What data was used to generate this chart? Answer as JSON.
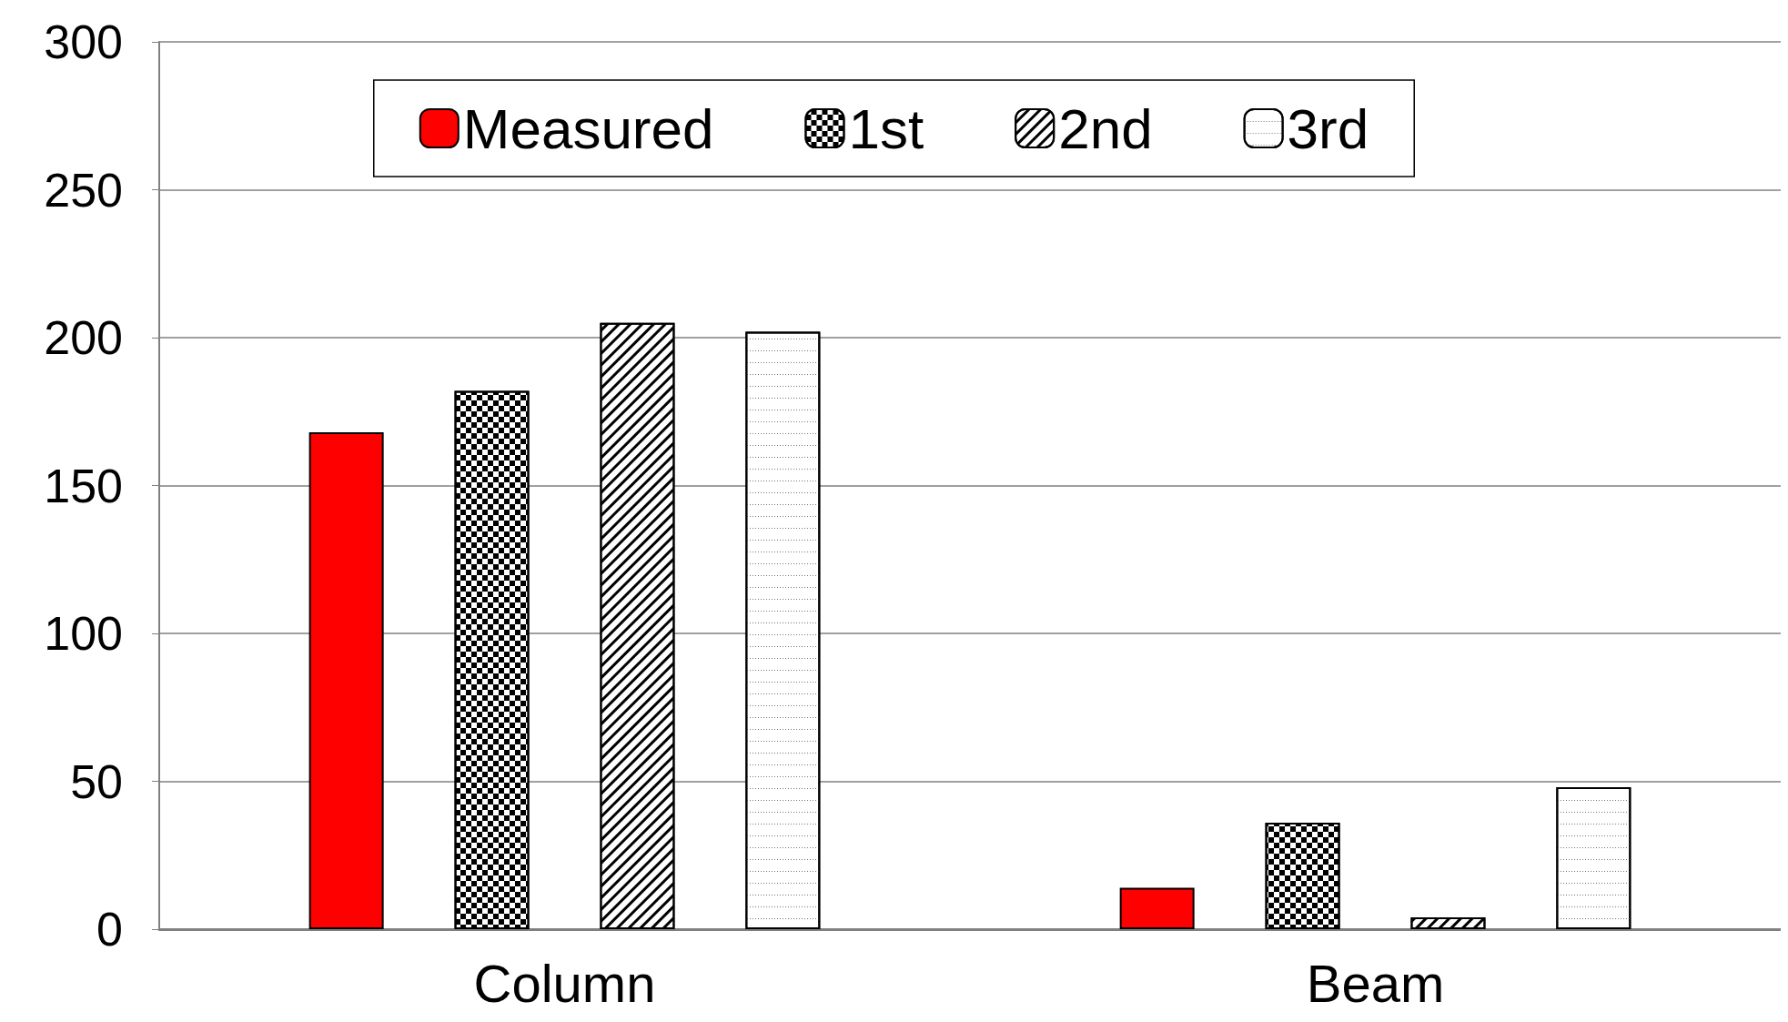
{
  "chart_data": {
    "type": "bar",
    "categories": [
      "Column",
      "Beam"
    ],
    "series": [
      {
        "name": "Measured",
        "color": "#ff0000",
        "values": [
          168,
          14
        ]
      },
      {
        "name": "1st",
        "color": "#ffffff",
        "values": [
          182,
          36
        ]
      },
      {
        "name": "2nd",
        "color": "#ffffff",
        "values": [
          205,
          4
        ]
      },
      {
        "name": "3rd",
        "color": "#ffffff",
        "values": [
          202,
          48
        ]
      }
    ],
    "ylim": [
      0,
      300
    ],
    "yticks": [
      0,
      50,
      100,
      150,
      200,
      250,
      300
    ],
    "grid": "y",
    "legend": "top"
  }
}
